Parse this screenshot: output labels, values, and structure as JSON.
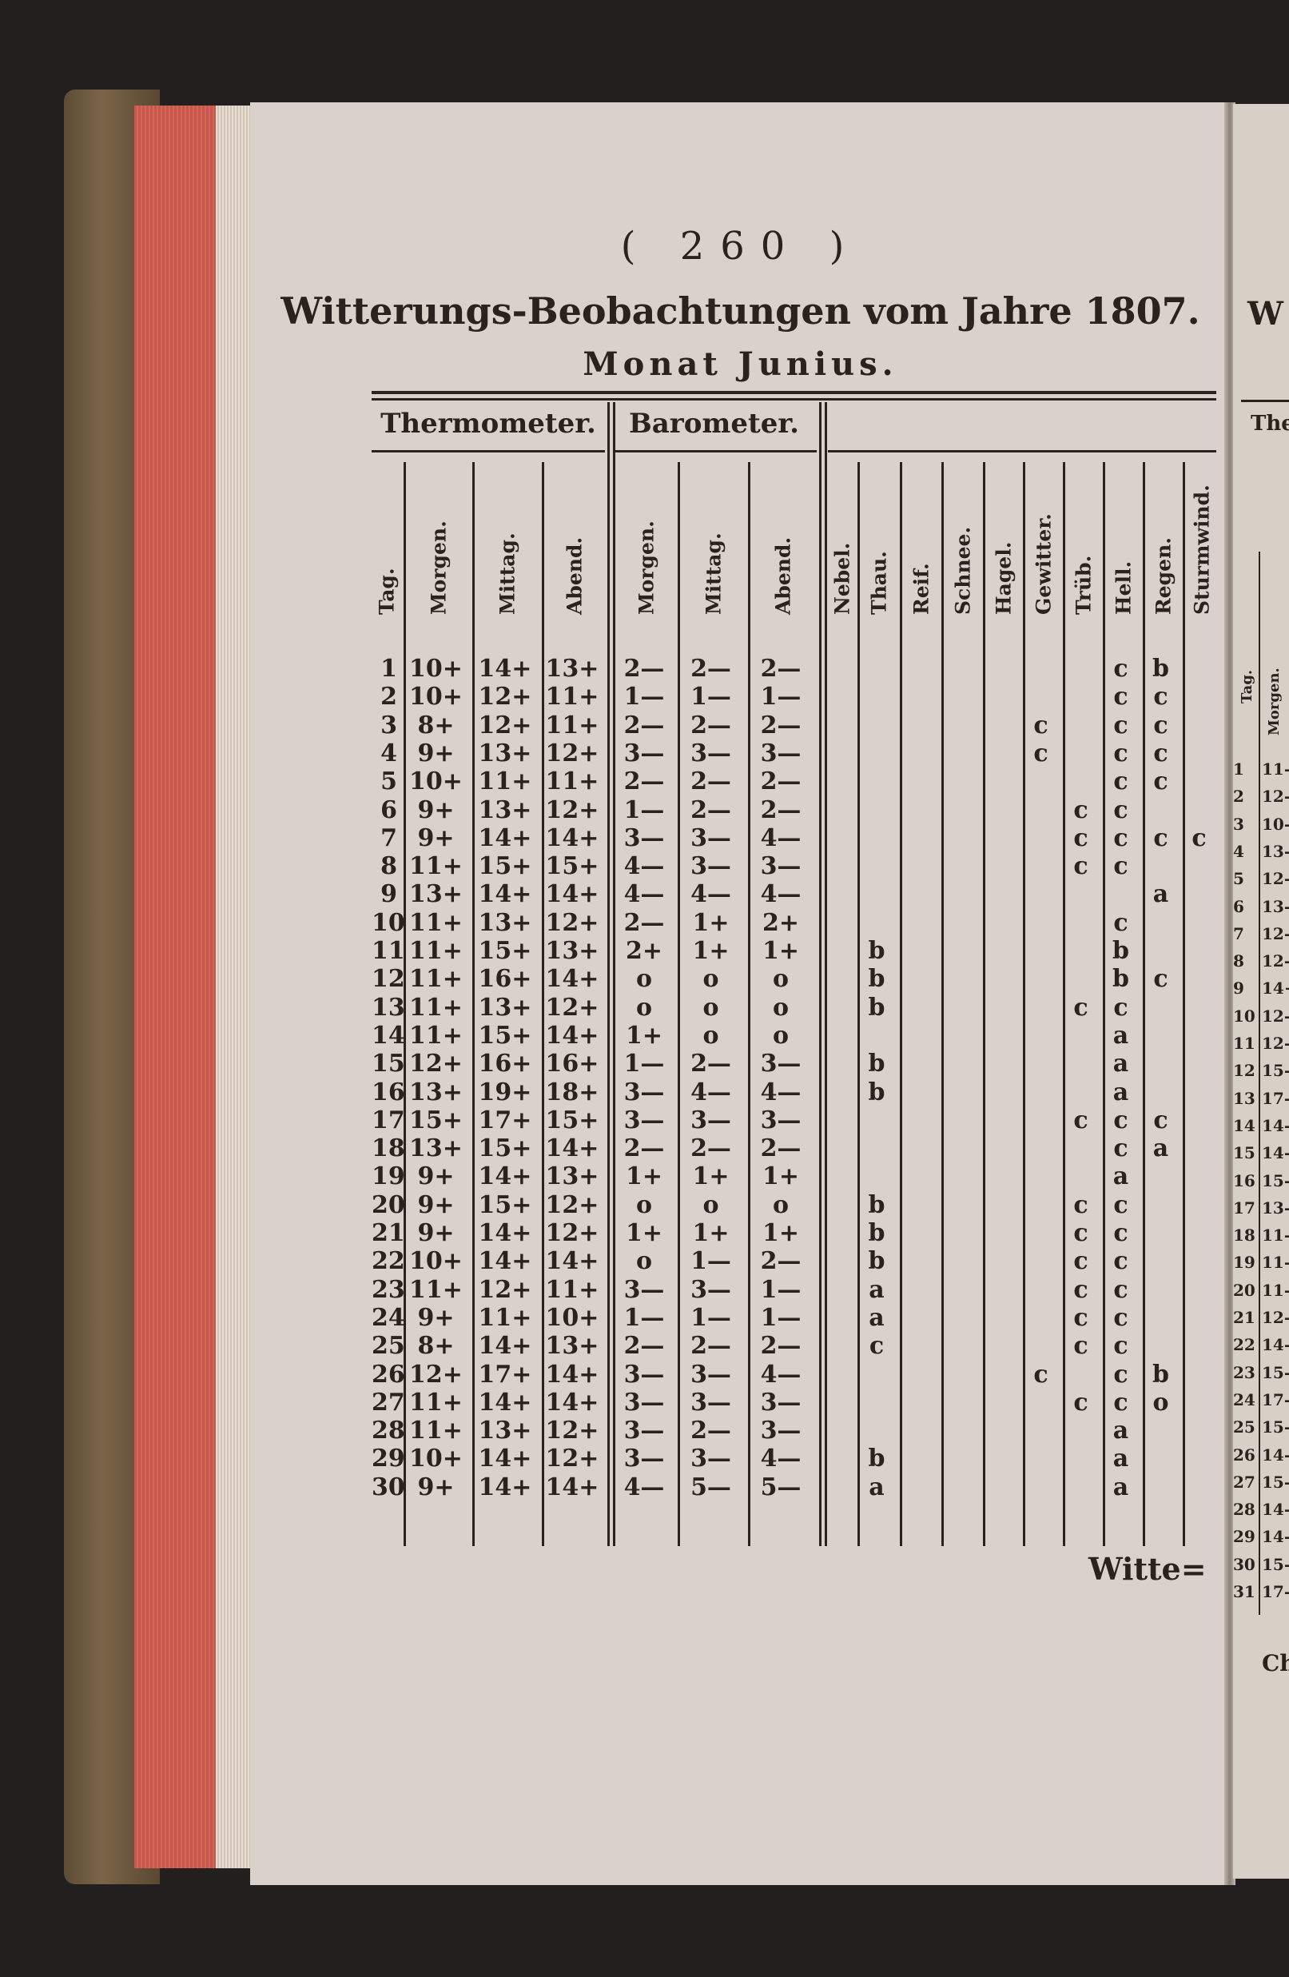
{
  "page": {
    "page_number": "( 260 )",
    "title": "Witterungs-Beobachtungen vom Jahre 1807.",
    "subtitle": "Monat Junius.",
    "catchword": "Witte="
  },
  "table": {
    "groups": [
      "Thermometer.",
      "Barometer."
    ],
    "columns": [
      "Tag.",
      "Morgen.",
      "Mittag.",
      "Abend.",
      "Morgen.",
      "Mittag.",
      "Abend.",
      "Nebel.",
      "Thau.",
      "Reif.",
      "Schnee.",
      "Hagel.",
      "Gewitter.",
      "Trüb.",
      "Hell.",
      "Regen.",
      "Sturmwind."
    ],
    "rows": [
      {
        "day": "1",
        "thermo": [
          "10+",
          "14+",
          "13+"
        ],
        "baro": [
          "2—",
          "2—",
          "2—"
        ],
        "weather": [
          "",
          "",
          "",
          "",
          "",
          "",
          "",
          "c",
          "b",
          ""
        ]
      },
      {
        "day": "2",
        "thermo": [
          "10+",
          "12+",
          "11+"
        ],
        "baro": [
          "1—",
          "1—",
          "1—"
        ],
        "weather": [
          "",
          "",
          "",
          "",
          "",
          "",
          "",
          "c",
          "c",
          ""
        ]
      },
      {
        "day": "3",
        "thermo": [
          "8+",
          "12+",
          "11+"
        ],
        "baro": [
          "2—",
          "2—",
          "2—"
        ],
        "weather": [
          "",
          "",
          "",
          "",
          "",
          "c",
          "",
          "c",
          "c",
          ""
        ]
      },
      {
        "day": "4",
        "thermo": [
          "9+",
          "13+",
          "12+"
        ],
        "baro": [
          "3—",
          "3—",
          "3—"
        ],
        "weather": [
          "",
          "",
          "",
          "",
          "",
          "c",
          "",
          "c",
          "c",
          ""
        ]
      },
      {
        "day": "5",
        "thermo": [
          "10+",
          "11+",
          "11+"
        ],
        "baro": [
          "2—",
          "2—",
          "2—"
        ],
        "weather": [
          "",
          "",
          "",
          "",
          "",
          "",
          "",
          "c",
          "c",
          ""
        ]
      },
      {
        "day": "6",
        "thermo": [
          "9+",
          "13+",
          "12+"
        ],
        "baro": [
          "1—",
          "2—",
          "2—"
        ],
        "weather": [
          "",
          "",
          "",
          "",
          "",
          "",
          "c",
          "c",
          "",
          ""
        ]
      },
      {
        "day": "7",
        "thermo": [
          "9+",
          "14+",
          "14+"
        ],
        "baro": [
          "3—",
          "3—",
          "4—"
        ],
        "weather": [
          "",
          "",
          "",
          "",
          "",
          "",
          "c",
          "c",
          "c",
          "c"
        ]
      },
      {
        "day": "8",
        "thermo": [
          "11+",
          "15+",
          "15+"
        ],
        "baro": [
          "4—",
          "3—",
          "3—"
        ],
        "weather": [
          "",
          "",
          "",
          "",
          "",
          "",
          "c",
          "c",
          "",
          ""
        ]
      },
      {
        "day": "9",
        "thermo": [
          "13+",
          "14+",
          "14+"
        ],
        "baro": [
          "4—",
          "4—",
          "4—"
        ],
        "weather": [
          "",
          "",
          "",
          "",
          "",
          "",
          "",
          "",
          "a",
          ""
        ]
      },
      {
        "day": "10",
        "thermo": [
          "11+",
          "13+",
          "12+"
        ],
        "baro": [
          "2—",
          "1+",
          "2+"
        ],
        "weather": [
          "",
          "",
          "",
          "",
          "",
          "",
          "",
          "c",
          "",
          ""
        ]
      },
      {
        "day": "11",
        "thermo": [
          "11+",
          "15+",
          "13+"
        ],
        "baro": [
          "2+",
          "1+",
          "1+"
        ],
        "weather": [
          "",
          "b",
          "",
          "",
          "",
          "",
          "",
          "b",
          "",
          ""
        ]
      },
      {
        "day": "12",
        "thermo": [
          "11+",
          "16+",
          "14+"
        ],
        "baro": [
          "o",
          "o",
          "o"
        ],
        "weather": [
          "",
          "b",
          "",
          "",
          "",
          "",
          "",
          "b",
          "c",
          ""
        ]
      },
      {
        "day": "13",
        "thermo": [
          "11+",
          "13+",
          "12+"
        ],
        "baro": [
          "o",
          "o",
          "o"
        ],
        "weather": [
          "",
          "b",
          "",
          "",
          "",
          "",
          "c",
          "c",
          "",
          ""
        ]
      },
      {
        "day": "14",
        "thermo": [
          "11+",
          "15+",
          "14+"
        ],
        "baro": [
          "1+",
          "o",
          "o"
        ],
        "weather": [
          "",
          "",
          "",
          "",
          "",
          "",
          "",
          "a",
          "",
          ""
        ]
      },
      {
        "day": "15",
        "thermo": [
          "12+",
          "16+",
          "16+"
        ],
        "baro": [
          "1—",
          "2—",
          "3—"
        ],
        "weather": [
          "",
          "b",
          "",
          "",
          "",
          "",
          "",
          "a",
          "",
          ""
        ]
      },
      {
        "day": "16",
        "thermo": [
          "13+",
          "19+",
          "18+"
        ],
        "baro": [
          "3—",
          "4—",
          "4—"
        ],
        "weather": [
          "",
          "b",
          "",
          "",
          "",
          "",
          "",
          "a",
          "",
          ""
        ]
      },
      {
        "day": "17",
        "thermo": [
          "15+",
          "17+",
          "15+"
        ],
        "baro": [
          "3—",
          "3—",
          "3—"
        ],
        "weather": [
          "",
          "",
          "",
          "",
          "",
          "",
          "c",
          "c",
          "c",
          ""
        ]
      },
      {
        "day": "18",
        "thermo": [
          "13+",
          "15+",
          "14+"
        ],
        "baro": [
          "2—",
          "2—",
          "2—"
        ],
        "weather": [
          "",
          "",
          "",
          "",
          "",
          "",
          "",
          "c",
          "a",
          ""
        ]
      },
      {
        "day": "19",
        "thermo": [
          "9+",
          "14+",
          "13+"
        ],
        "baro": [
          "1+",
          "1+",
          "1+"
        ],
        "weather": [
          "",
          "",
          "",
          "",
          "",
          "",
          "",
          "a",
          "",
          ""
        ]
      },
      {
        "day": "20",
        "thermo": [
          "9+",
          "15+",
          "12+"
        ],
        "baro": [
          "o",
          "o",
          "o"
        ],
        "weather": [
          "",
          "b",
          "",
          "",
          "",
          "",
          "c",
          "c",
          "",
          ""
        ]
      },
      {
        "day": "21",
        "thermo": [
          "9+",
          "14+",
          "12+"
        ],
        "baro": [
          "1+",
          "1+",
          "1+"
        ],
        "weather": [
          "",
          "b",
          "",
          "",
          "",
          "",
          "c",
          "c",
          "",
          ""
        ]
      },
      {
        "day": "22",
        "thermo": [
          "10+",
          "14+",
          "14+"
        ],
        "baro": [
          "o",
          "1—",
          "2—"
        ],
        "weather": [
          "",
          "b",
          "",
          "",
          "",
          "",
          "c",
          "c",
          "",
          ""
        ]
      },
      {
        "day": "23",
        "thermo": [
          "11+",
          "12+",
          "11+"
        ],
        "baro": [
          "3—",
          "3—",
          "1—"
        ],
        "weather": [
          "",
          "a",
          "",
          "",
          "",
          "",
          "c",
          "c",
          "",
          ""
        ]
      },
      {
        "day": "24",
        "thermo": [
          "9+",
          "11+",
          "10+"
        ],
        "baro": [
          "1—",
          "1—",
          "1—"
        ],
        "weather": [
          "",
          "a",
          "",
          "",
          "",
          "",
          "c",
          "c",
          "",
          ""
        ]
      },
      {
        "day": "25",
        "thermo": [
          "8+",
          "14+",
          "13+"
        ],
        "baro": [
          "2—",
          "2—",
          "2—"
        ],
        "weather": [
          "",
          "c",
          "",
          "",
          "",
          "",
          "c",
          "c",
          "",
          ""
        ]
      },
      {
        "day": "26",
        "thermo": [
          "12+",
          "17+",
          "14+"
        ],
        "baro": [
          "3—",
          "3—",
          "4—"
        ],
        "weather": [
          "",
          "",
          "",
          "",
          "",
          "c",
          "",
          "c",
          "b",
          ""
        ]
      },
      {
        "day": "27",
        "thermo": [
          "11+",
          "14+",
          "14+"
        ],
        "baro": [
          "3—",
          "3—",
          "3—"
        ],
        "weather": [
          "",
          "",
          "",
          "",
          "",
          "",
          "c",
          "c",
          "o",
          ""
        ]
      },
      {
        "day": "28",
        "thermo": [
          "11+",
          "13+",
          "12+"
        ],
        "baro": [
          "3—",
          "2—",
          "3—"
        ],
        "weather": [
          "",
          "",
          "",
          "",
          "",
          "",
          "",
          "a",
          "",
          ""
        ]
      },
      {
        "day": "29",
        "thermo": [
          "10+",
          "14+",
          "12+"
        ],
        "baro": [
          "3—",
          "3—",
          "4—"
        ],
        "weather": [
          "",
          "b",
          "",
          "",
          "",
          "",
          "",
          "a",
          "",
          ""
        ]
      },
      {
        "day": "30",
        "thermo": [
          "9+",
          "14+",
          "14+"
        ],
        "baro": [
          "4—",
          "5—",
          "5—"
        ],
        "weather": [
          "",
          "a",
          "",
          "",
          "",
          "",
          "",
          "a",
          "",
          ""
        ]
      }
    ]
  },
  "right_page": {
    "title_fragment": "W",
    "group_fragment": "Ther",
    "columns": [
      "Tag.",
      "Morgen."
    ],
    "days": [
      "1",
      "2",
      "3",
      "4",
      "5",
      "6",
      "7",
      "8",
      "9",
      "10",
      "11",
      "12",
      "13",
      "14",
      "15",
      "16",
      "17",
      "18",
      "19",
      "20",
      "21",
      "22",
      "23",
      "24",
      "25",
      "26",
      "27",
      "28",
      "29",
      "30",
      "31"
    ],
    "morning_fragments": [
      "11-",
      "12-",
      "10-",
      "13-",
      "12-",
      "13-",
      "12-",
      "12-",
      "14+",
      "12-",
      "12-",
      "15-",
      "17-",
      "14-",
      "14-",
      "15-",
      "13-",
      "11-",
      "11-",
      "11-",
      "12-",
      "14-",
      "15-",
      "17-",
      "15-",
      "14-",
      "15-",
      "14-",
      "14-",
      "15-",
      "17-"
    ],
    "catchword_fragment": "Ch"
  }
}
